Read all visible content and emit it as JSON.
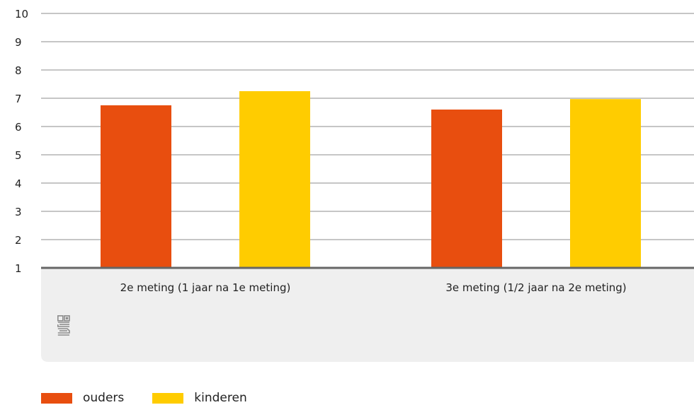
{
  "chart_data": {
    "type": "bar",
    "categories": [
      "2e meting (1 jaar na 1e meting)",
      "3e meting (1/2 jaar na 2e meting)"
    ],
    "series": [
      {
        "name": "ouders",
        "values": [
          6.75,
          6.6
        ],
        "color": "#E84E0F"
      },
      {
        "name": "kinderen",
        "values": [
          7.25,
          6.97
        ],
        "color": "#FFCC00"
      }
    ],
    "yticks": [
      "1",
      "2",
      "3",
      "4",
      "5",
      "6",
      "7",
      "8",
      "9",
      "10"
    ],
    "ylim": [
      1,
      10
    ],
    "grid": true,
    "legend_position": "bottom-left"
  },
  "logo": {
    "icon": "cbs-logo-icon",
    "color": "#8c8c8c"
  },
  "colors": {
    "plot_bg": "#ffffff",
    "label_panel_bg": "#efefef",
    "grid": "#8c8c8c",
    "axis": "#666666"
  }
}
